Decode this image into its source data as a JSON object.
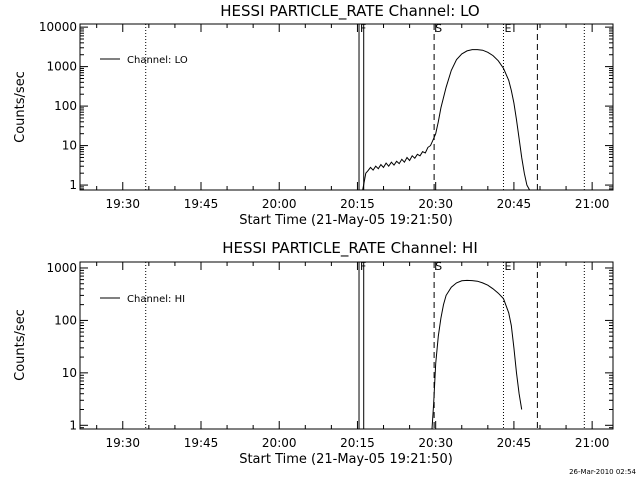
{
  "timestamp": "26-Mar-2010 02:54",
  "chart_data": [
    {
      "type": "line",
      "title": "HESSI PARTICLE_RATE Channel: LO",
      "xlabel": "Start Time (21-May-05 19:21:50)",
      "ylabel": "Counts/sec",
      "x_ticks": [
        "19:30",
        "19:45",
        "20:00",
        "20:15",
        "20:30",
        "20:45",
        "21:00"
      ],
      "x_tick_minutes": [
        1170,
        1185,
        1200,
        1215,
        1230,
        1245,
        1260
      ],
      "xlim_minutes": [
        1161.8,
        1264
      ],
      "y_scale": "log",
      "ylim": [
        0.75,
        12000
      ],
      "y_ticks": [
        "1",
        "10",
        "100",
        "1000",
        "10000"
      ],
      "y_tick_values": [
        1,
        10,
        100,
        1000,
        10000
      ],
      "legend": {
        "label": "Channel: LO",
        "position": "top-left"
      },
      "series": [
        {
          "name": "Channel: LO",
          "x_minutes": [
            1216.0,
            1216.3,
            1216.6,
            1217.0,
            1217.5,
            1218.0,
            1218.5,
            1219.0,
            1219.5,
            1220.0,
            1220.5,
            1221.0,
            1221.5,
            1222.0,
            1222.5,
            1223.0,
            1223.5,
            1224.0,
            1224.5,
            1225.0,
            1225.5,
            1226.0,
            1226.5,
            1227.0,
            1227.5,
            1228.0,
            1228.5,
            1229.0,
            1229.5,
            1230.0,
            1230.5,
            1231.0,
            1232.0,
            1233.0,
            1234.0,
            1235.0,
            1236.0,
            1237.0,
            1238.0,
            1239.0,
            1240.0,
            1241.0,
            1242.0,
            1243.0,
            1244.0,
            1244.5,
            1245.0,
            1245.5,
            1246.0,
            1246.5,
            1247.0,
            1247.5,
            1248.0
          ],
          "values": [
            0.75,
            1.2,
            2.0,
            2.3,
            2.8,
            2.4,
            3.0,
            2.6,
            3.3,
            2.8,
            3.6,
            3.0,
            3.8,
            3.2,
            4.0,
            3.5,
            4.5,
            3.8,
            5.0,
            4.2,
            5.5,
            4.8,
            6.0,
            5.5,
            7.0,
            6.5,
            9.0,
            10,
            14,
            20,
            40,
            90,
            300,
            800,
            1500,
            2100,
            2500,
            2700,
            2700,
            2600,
            2300,
            1900,
            1400,
            900,
            450,
            250,
            120,
            45,
            15,
            5,
            2,
            1,
            0.75
          ]
        }
      ],
      "markers": [
        {
          "label": "F",
          "minute": 1215.3,
          "style": "solid"
        },
        {
          "label": "S",
          "minute": 1229.7,
          "style": "dashed"
        },
        {
          "label": "E",
          "minute": 1243.0,
          "style": "dotted"
        }
      ],
      "reference_lines": [
        {
          "minute": 1174.4,
          "style": "dotted"
        },
        {
          "minute": 1216.2,
          "style": "solid"
        },
        {
          "minute": 1249.5,
          "style": "dashed"
        },
        {
          "minute": 1258.5,
          "style": "dotted"
        }
      ]
    },
    {
      "type": "line",
      "title": "HESSI PARTICLE_RATE Channel: HI",
      "xlabel": "Start Time (21-May-05 19:21:50)",
      "ylabel": "Counts/sec",
      "x_ticks": [
        "19:30",
        "19:45",
        "20:00",
        "20:15",
        "20:30",
        "20:45",
        "21:00"
      ],
      "x_tick_minutes": [
        1170,
        1185,
        1200,
        1215,
        1230,
        1245,
        1260
      ],
      "xlim_minutes": [
        1161.8,
        1264
      ],
      "y_scale": "log",
      "ylim": [
        0.85,
        1300
      ],
      "y_ticks": [
        "1",
        "10",
        "100",
        "1000"
      ],
      "y_tick_values": [
        1,
        10,
        100,
        1000
      ],
      "legend": {
        "label": "Channel: HI",
        "position": "top-left"
      },
      "series": [
        {
          "name": "Channel: HI",
          "x_minutes": [
            1229.3,
            1229.6,
            1230.0,
            1230.5,
            1231.0,
            1231.5,
            1232.0,
            1233.0,
            1234.0,
            1235.0,
            1236.0,
            1237.0,
            1238.0,
            1239.0,
            1240.0,
            1241.0,
            1242.0,
            1243.0,
            1244.0,
            1244.5,
            1245.0,
            1245.5,
            1246.0,
            1246.5
          ],
          "values": [
            0.85,
            2.5,
            15,
            50,
            110,
            200,
            300,
            430,
            520,
            570,
            580,
            575,
            560,
            520,
            470,
            400,
            330,
            260,
            140,
            80,
            30,
            10,
            4,
            2
          ]
        }
      ],
      "markers": [
        {
          "label": "F",
          "minute": 1215.3,
          "style": "solid"
        },
        {
          "label": "S",
          "minute": 1229.7,
          "style": "dashed"
        },
        {
          "label": "E",
          "minute": 1243.0,
          "style": "dotted"
        }
      ],
      "reference_lines": [
        {
          "minute": 1174.4,
          "style": "dotted"
        },
        {
          "minute": 1216.2,
          "style": "solid"
        },
        {
          "minute": 1249.5,
          "style": "dashed"
        },
        {
          "minute": 1258.5,
          "style": "dotted"
        }
      ]
    }
  ]
}
